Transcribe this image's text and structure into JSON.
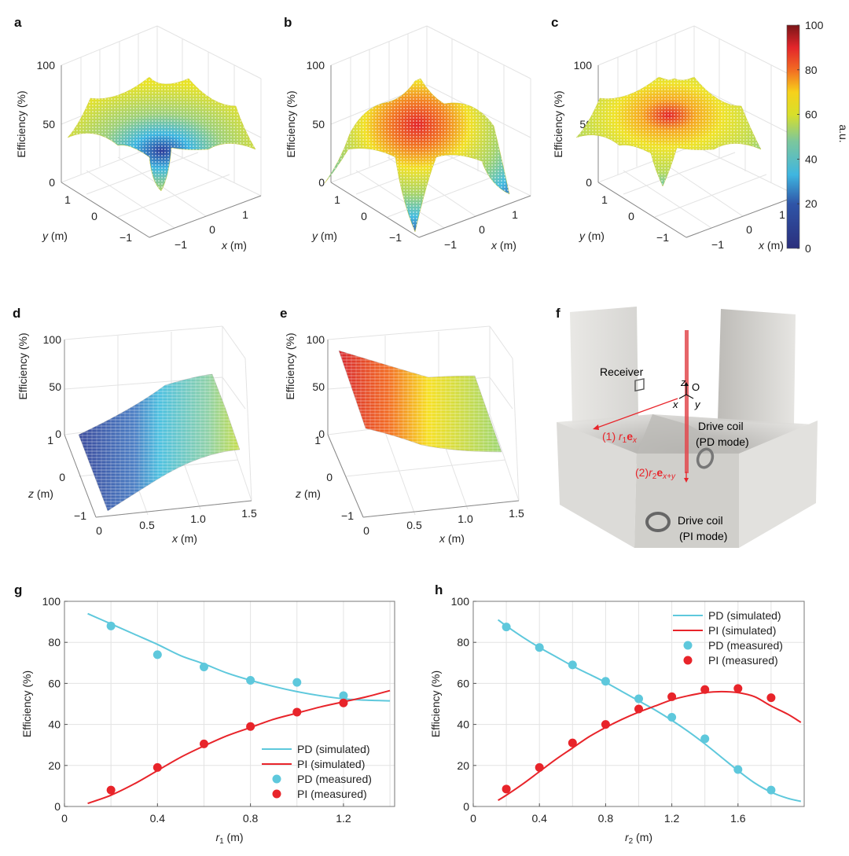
{
  "figure": {
    "panels_3d": [
      {
        "id": "a",
        "label": "a",
        "zlabel": "Efficiency (%)",
        "zticks": [
          "0",
          "50",
          "100"
        ],
        "xlabel_var": "x",
        "xlabel_unit": " (m)",
        "ylabel_var": "y",
        "ylabel_unit": " (m)",
        "xticks": [
          "−1",
          "0",
          "1"
        ],
        "yticks": [
          "−1",
          "0",
          "1"
        ],
        "surface": "center-dip",
        "center_value": 2,
        "edge_peak_value": 70
      },
      {
        "id": "b",
        "label": "b",
        "zlabel": "Efficiency (%)",
        "zticks": [
          "0",
          "50",
          "100"
        ],
        "xlabel_var": "x",
        "xlabel_unit": " (m)",
        "ylabel_var": "y",
        "ylabel_unit": " (m)",
        "xticks": [
          "−1",
          "0",
          "1"
        ],
        "yticks": [
          "−1",
          "0",
          "1"
        ],
        "surface": "center-peak",
        "center_value": 90,
        "edge_min_value": 2
      },
      {
        "id": "c",
        "label": "c",
        "zlabel": "Efficiency (%)",
        "zticks": [
          "0",
          "50",
          "100"
        ],
        "xlabel_var": "x",
        "xlabel_unit": " (m)",
        "ylabel_var": "y",
        "ylabel_unit": " (m)",
        "xticks": [
          "−1",
          "0",
          "1"
        ],
        "yticks": [
          "−1",
          "0",
          "1"
        ],
        "surface": "combined",
        "center_value": 90,
        "edge_peak_value": 70
      }
    ],
    "colorbar": {
      "label": "a.u.",
      "ticks": [
        "0",
        "20",
        "40",
        "60",
        "80",
        "100"
      ],
      "min": 0,
      "max": 100
    },
    "panels_slice": [
      {
        "id": "d",
        "label": "d",
        "zlabel": "Efficiency (%)",
        "zticks": [
          "0",
          "50",
          "100"
        ],
        "xlabel_var": "x",
        "xlabel_unit": " (m)",
        "xticks": [
          "0",
          "0.5",
          "1.0",
          "1.5"
        ],
        "ylabel_var": "z",
        "ylabel_unit": " (m)",
        "yticks": [
          "−1",
          "0",
          "1"
        ],
        "trend": "increasing",
        "start_value": 5,
        "end_value": 55
      },
      {
        "id": "e",
        "label": "e",
        "zlabel": "Efficiency (%)",
        "zticks": [
          "0",
          "50",
          "100"
        ],
        "xlabel_var": "x",
        "xlabel_unit": " (m)",
        "xticks": [
          "0",
          "0.5",
          "1.0",
          "1.5"
        ],
        "ylabel_var": "z",
        "ylabel_unit": " (m)",
        "yticks": [
          "−1",
          "0",
          "1"
        ],
        "trend": "decreasing",
        "start_value": 90,
        "end_value": 55
      }
    ],
    "panel_f": {
      "label": "f",
      "receiver": "Receiver",
      "origin": "O",
      "axis_x": "x",
      "axis_y": "y",
      "axis_z": "z",
      "path1_prefix": "(1) ",
      "path1_var": "r",
      "path1_sub": "1",
      "path1_vec": "e",
      "path1_vec_sub": "x",
      "path2_prefix": "(2)",
      "path2_var": "r",
      "path2_sub": "2",
      "path2_vec": "e",
      "path2_vec_sub": "x+y",
      "coil_pd_line1": "Drive coil",
      "coil_pd_line2": "(PD mode)",
      "coil_pi_line1": "Drive coil",
      "coil_pi_line2": "(PI mode)"
    }
  },
  "colors": {
    "pd": "#5ec8dc",
    "pi": "#e8242a",
    "grid": "#e3e3e3",
    "axis": "#777777",
    "annotation": "#e8242a"
  },
  "chart_data": [
    {
      "id": "g",
      "label": "g",
      "type": "line",
      "title": "",
      "xlabel_var": "r",
      "xlabel_sub": "1",
      "xlabel_unit": " (m)",
      "ylabel": "Efficiency (%)",
      "xlim": [
        0,
        1.42
      ],
      "ylim": [
        0,
        100
      ],
      "xticks": [
        0,
        0.4,
        0.8,
        1.2
      ],
      "xtick_labels": [
        "0",
        "0.4",
        "0.8",
        "1.2"
      ],
      "yticks": [
        0,
        20,
        40,
        60,
        80,
        100
      ],
      "ytick_labels": [
        "0",
        "20",
        "40",
        "60",
        "80",
        "100"
      ],
      "grid": true,
      "grid_x": [
        0.2,
        0.4,
        0.6,
        0.8,
        1.0,
        1.2,
        1.4
      ],
      "legend_position": "bottom-right",
      "series": [
        {
          "name": "PD (simulated)",
          "kind": "line",
          "color_key": "pd",
          "x": [
            0.1,
            0.2,
            0.3,
            0.4,
            0.5,
            0.6,
            0.7,
            0.8,
            0.9,
            1.0,
            1.1,
            1.2,
            1.3,
            1.4
          ],
          "y": [
            94,
            89,
            84,
            79,
            73.5,
            69.5,
            65,
            61.5,
            58.5,
            56,
            54,
            52.5,
            51.8,
            51.5
          ]
        },
        {
          "name": "PI (simulated)",
          "kind": "line",
          "color_key": "pi",
          "x": [
            0.1,
            0.2,
            0.3,
            0.4,
            0.5,
            0.6,
            0.7,
            0.8,
            0.9,
            1.0,
            1.1,
            1.2,
            1.3,
            1.4
          ],
          "y": [
            1.5,
            5.5,
            11,
            17.5,
            24,
            29.5,
            34.5,
            38.5,
            42.5,
            45.5,
            48.5,
            51,
            53.5,
            56.5
          ]
        },
        {
          "name": "PD (measured)",
          "kind": "scatter",
          "color_key": "pd",
          "x": [
            0.2,
            0.4,
            0.6,
            0.8,
            1.0,
            1.2
          ],
          "y": [
            88,
            74,
            68,
            61.5,
            60.5,
            54
          ]
        },
        {
          "name": "PI (measured)",
          "kind": "scatter",
          "color_key": "pi",
          "x": [
            0.2,
            0.4,
            0.6,
            0.8,
            1.0,
            1.2
          ],
          "y": [
            8,
            19,
            30.5,
            39,
            46,
            50.5
          ]
        }
      ]
    },
    {
      "id": "h",
      "label": "h",
      "type": "line",
      "title": "",
      "xlabel_var": "r",
      "xlabel_sub": "2",
      "xlabel_unit": " (m)",
      "ylabel": "Efficiency (%)",
      "xlim": [
        0,
        2.0
      ],
      "ylim": [
        0,
        100
      ],
      "xticks": [
        0,
        0.4,
        0.8,
        1.2,
        1.6
      ],
      "xtick_labels": [
        "0",
        "0.4",
        "0.8",
        "1.2",
        "1.6"
      ],
      "yticks": [
        0,
        20,
        40,
        60,
        80,
        100
      ],
      "ytick_labels": [
        "0",
        "20",
        "40",
        "60",
        "80",
        "100"
      ],
      "grid": true,
      "grid_x": [
        0.2,
        0.4,
        0.6,
        0.8,
        1.0,
        1.2,
        1.4,
        1.6,
        1.8
      ],
      "legend_position": "top-right",
      "series": [
        {
          "name": "PD (simulated)",
          "kind": "line",
          "color_key": "pd",
          "x": [
            0.15,
            0.2,
            0.3,
            0.4,
            0.5,
            0.6,
            0.7,
            0.8,
            0.9,
            1.0,
            1.1,
            1.2,
            1.3,
            1.4,
            1.5,
            1.6,
            1.7,
            1.8,
            1.9,
            1.98
          ],
          "y": [
            91,
            88,
            82.5,
            77.5,
            73,
            68.5,
            64.5,
            60.5,
            56,
            51.5,
            47,
            42,
            36.5,
            30.5,
            24,
            17.5,
            11.5,
            7,
            4,
            2.5
          ]
        },
        {
          "name": "PI (simulated)",
          "kind": "line",
          "color_key": "pi",
          "x": [
            0.15,
            0.2,
            0.3,
            0.4,
            0.5,
            0.6,
            0.7,
            0.8,
            0.9,
            1.0,
            1.1,
            1.2,
            1.3,
            1.4,
            1.5,
            1.6,
            1.7,
            1.8,
            1.9,
            1.98
          ],
          "y": [
            3,
            5.5,
            11,
            17,
            23,
            28.5,
            34,
            38.5,
            42.5,
            46,
            49,
            52,
            54,
            55.5,
            56,
            55.5,
            53.5,
            49,
            45,
            41
          ]
        },
        {
          "name": "PD (measured)",
          "kind": "scatter",
          "color_key": "pd",
          "x": [
            0.2,
            0.4,
            0.6,
            0.8,
            1.0,
            1.2,
            1.4,
            1.6,
            1.8
          ],
          "y": [
            87.5,
            77.5,
            69,
            61,
            52.5,
            43.5,
            33,
            18,
            8
          ]
        },
        {
          "name": "PI (measured)",
          "kind": "scatter",
          "color_key": "pi",
          "x": [
            0.2,
            0.4,
            0.6,
            0.8,
            1.0,
            1.2,
            1.4,
            1.6,
            1.8
          ],
          "y": [
            8.5,
            19,
            31,
            40,
            47.5,
            53.5,
            57,
            57.5,
            53
          ]
        }
      ]
    }
  ]
}
